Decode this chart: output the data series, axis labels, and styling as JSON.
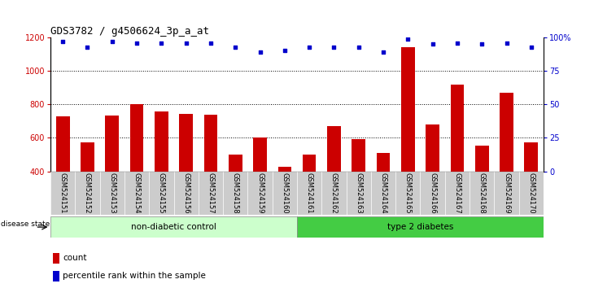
{
  "title": "GDS3782 / g4506624_3p_a_at",
  "samples": [
    "GSM524151",
    "GSM524152",
    "GSM524153",
    "GSM524154",
    "GSM524155",
    "GSM524156",
    "GSM524157",
    "GSM524158",
    "GSM524159",
    "GSM524160",
    "GSM524161",
    "GSM524162",
    "GSM524163",
    "GSM524164",
    "GSM524165",
    "GSM524166",
    "GSM524167",
    "GSM524168",
    "GSM524169",
    "GSM524170"
  ],
  "bar_values": [
    730,
    572,
    735,
    800,
    760,
    745,
    740,
    500,
    600,
    425,
    500,
    670,
    595,
    510,
    1140,
    680,
    920,
    555,
    870,
    572
  ],
  "percentile_values": [
    97,
    93,
    97,
    96,
    96,
    96,
    96,
    93,
    89,
    90,
    93,
    93,
    93,
    89,
    99,
    95,
    96,
    95,
    96,
    93
  ],
  "ylim_left": [
    400,
    1200
  ],
  "ylim_right": [
    0,
    100
  ],
  "group1_label": "non-diabetic control",
  "group2_label": "type 2 diabetes",
  "group1_count": 10,
  "group2_count": 10,
  "bar_color": "#cc0000",
  "dot_color": "#0000cc",
  "group1_bg": "#ccffcc",
  "group2_bg": "#44cc44",
  "tick_bg": "#cccccc",
  "legend_count_label": "count",
  "legend_pct_label": "percentile rank within the sample",
  "title_fontsize": 9,
  "axis_fontsize": 7,
  "label_fontsize": 6,
  "disease_fontsize": 7.5,
  "legend_fontsize": 7.5,
  "grid_yticks": [
    600,
    800,
    1000
  ],
  "left_yticks": [
    400,
    600,
    800,
    1000,
    1200
  ],
  "right_yticks": [
    0,
    25,
    50,
    75,
    100
  ]
}
